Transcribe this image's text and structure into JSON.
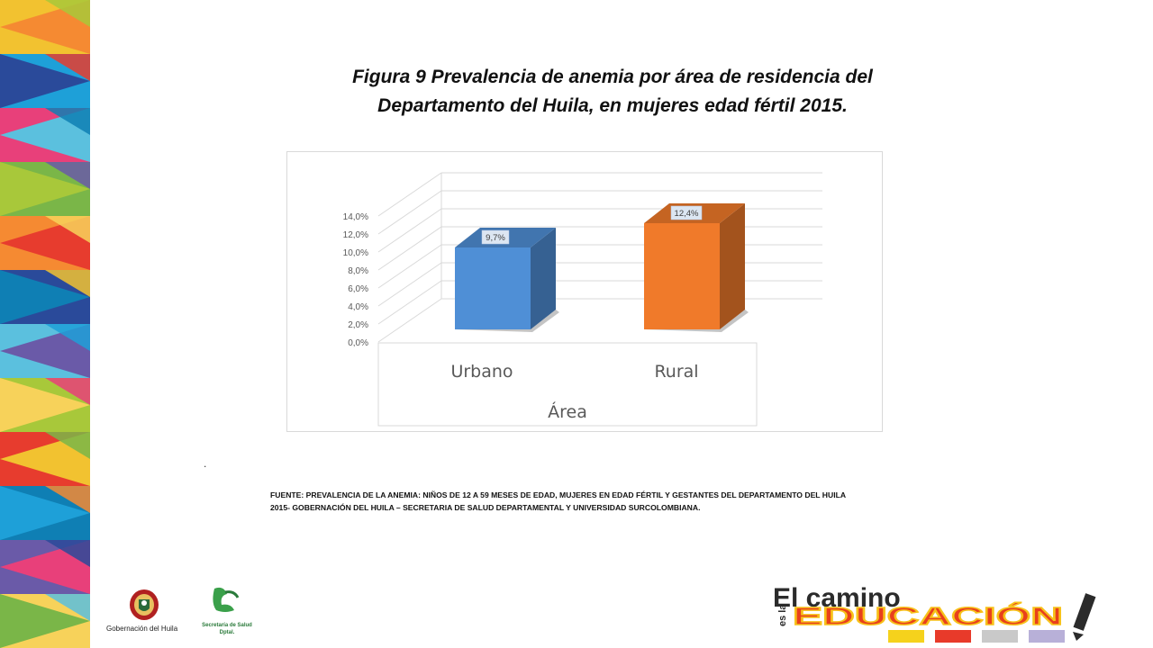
{
  "slide": {
    "title_line1": "Figura 9 Prevalencia de anemia por área de residencia del",
    "title_line2": "Departamento del Huila, en mujeres edad fértil 2015.",
    "dot": ".",
    "source_line1": "FUENTE: PREVALENCIA  DE LA ANEMIA: NIÑOS DE 12 A 59 MESES DE EDAD, MUJERES EN EDAD FÉRTIL Y GESTANTES DEL DEPARTAMENTO DEL HUILA",
    "source_line2": "2015- GOBERNACIÓN DEL HUILA – SECRETARIA DE SALUD DEPARTAMENTAL Y UNIVERSIDAD SURCOLOMBIANA."
  },
  "logos": {
    "gobernacion_label": "Gobernación del Huila",
    "secretaria_line1": "Secretaría de Salud",
    "secretaria_line2": "Dptal."
  },
  "banner": {
    "line1": "El camino",
    "side": "es la",
    "line2": "EDUCACIÓN"
  },
  "chart_data": {
    "type": "bar",
    "style": "3d-column",
    "categories": [
      "Urbano",
      "Rural"
    ],
    "values": [
      9.7,
      12.4
    ],
    "data_labels": [
      "9,7%",
      "12,4%"
    ],
    "colors": [
      "#4f8fd6",
      "#f07a2a"
    ],
    "title": "",
    "xlabel": "Área",
    "ylabel": "",
    "ylim": [
      0,
      14
    ],
    "yticks": [
      "0,0%",
      "2,0%",
      "4,0%",
      "6,0%",
      "8,0%",
      "10,0%",
      "12,0%",
      "14,0%"
    ],
    "grid": true,
    "legend": "none"
  }
}
